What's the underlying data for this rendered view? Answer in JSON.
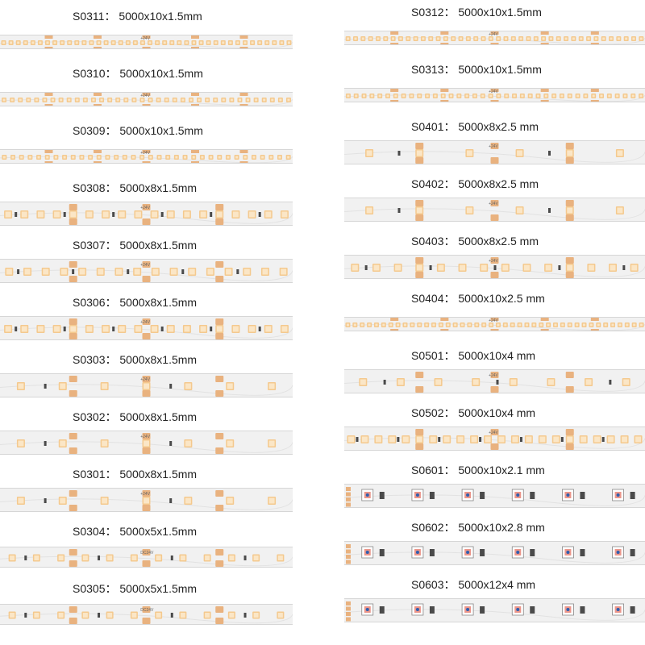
{
  "colors": {
    "pcb": "#f1f1f1",
    "led_warm": "#f4c98e",
    "led_core": "#fbe6c6",
    "pad_copper": "#e9b27f",
    "resistor": "#4a4a4a",
    "rgb_red": "#d8402b",
    "rgb_green": "#3d9b4a",
    "rgb_blue": "#2f5fb0"
  },
  "left_column": [
    {
      "model": "S0311",
      "size": "5000x10x1.5mm",
      "kind": "dense",
      "leds_visible": 40,
      "marks": [
        "+24V",
        "-24V"
      ]
    },
    {
      "model": "S0310",
      "size": "5000x10x1.5mm",
      "kind": "dense",
      "leds_visible": 36,
      "marks": [
        "+24V",
        "-24V"
      ]
    },
    {
      "model": "S0309",
      "size": "5000x10x1.5mm",
      "kind": "dense",
      "leds_visible": 34,
      "marks": [
        "+24V",
        "-24V"
      ]
    },
    {
      "model": "S0308",
      "size": "5000x8x1.5mm",
      "kind": "medium",
      "leds_visible": 18,
      "marks": [
        "+24V",
        "-24V"
      ]
    },
    {
      "model": "S0307",
      "size": "5000x8x1.5mm",
      "kind": "medium",
      "leds_visible": 16,
      "marks": [
        "+24V",
        "-24V"
      ]
    },
    {
      "model": "S0306",
      "size": "5000x8x1.5mm",
      "kind": "medium",
      "leds_visible": 18,
      "marks": [
        "+24V",
        "-24V"
      ]
    },
    {
      "model": "S0303",
      "size": "5000x8x1.5mm",
      "kind": "sparse",
      "leds_visible": 7,
      "marks": [
        "+24V",
        "-24V"
      ]
    },
    {
      "model": "S0302",
      "size": "5000x8x1.5mm",
      "kind": "sparse",
      "leds_visible": 7,
      "marks": [
        "+24V",
        "-24V"
      ]
    },
    {
      "model": "S0301",
      "size": "5000x8x1.5mm",
      "kind": "sparse",
      "leds_visible": 7,
      "marks": [
        "+24V",
        "-24V"
      ]
    },
    {
      "model": "S0304",
      "size": "5000x5x1.5mm",
      "kind": "narrow",
      "leds_visible": 12,
      "marks": [
        "DC24V",
        "+",
        "-"
      ]
    },
    {
      "model": "S0305",
      "size": "5000x5x1.5mm",
      "kind": "narrow",
      "leds_visible": 12,
      "marks": [
        "DC24V",
        "+",
        "-"
      ]
    }
  ],
  "right_column": [
    {
      "model": "S0312",
      "size": "5000x10x1.5mm",
      "kind": "dense",
      "leds_visible": 40,
      "marks": [
        "+24V",
        "-24V"
      ]
    },
    {
      "model": "S0313",
      "size": "5000x10x1.5mm",
      "kind": "dense",
      "leds_visible": 38,
      "marks": [
        "+24V",
        "-24V"
      ]
    },
    {
      "model": "S0401",
      "size": "5000x8x2.5 mm",
      "kind": "sparse",
      "leds_visible": 6,
      "marks": [
        "+24V"
      ]
    },
    {
      "model": "S0402",
      "size": "5000x8x2.5 mm",
      "kind": "sparse",
      "leds_visible": 6,
      "marks": [
        "+24V"
      ]
    },
    {
      "model": "S0403",
      "size": "5000x8x2.5 mm",
      "kind": "medium",
      "leds_visible": 14,
      "marks": [
        "+24V",
        "-24V"
      ]
    },
    {
      "model": "S0404",
      "size": "5000x10x2.5 mm",
      "kind": "dense",
      "leds_visible": 42,
      "marks": [
        "+24V",
        "-24V"
      ]
    },
    {
      "model": "S0501",
      "size": "5000x10x4 mm",
      "kind": "sparse",
      "leds_visible": 8,
      "marks": [
        "+24V"
      ]
    },
    {
      "model": "S0502",
      "size": "5000x10x4 mm",
      "kind": "medium",
      "leds_visible": 22,
      "marks": [
        "+24V"
      ]
    },
    {
      "model": "S0601",
      "size": "5000x10x2.1 mm",
      "kind": "rgb",
      "leds_visible": 6,
      "marks": [
        "B",
        "R",
        "G",
        "24V"
      ]
    },
    {
      "model": "S0602",
      "size": "5000x10x2.8 mm",
      "kind": "rgb",
      "leds_visible": 6,
      "marks": [
        "B",
        "R",
        "G",
        "24V"
      ]
    },
    {
      "model": "S0603",
      "size": "5000x12x4 mm",
      "kind": "rgb",
      "leds_visible": 6,
      "marks": [
        "B",
        "R",
        "G",
        "24V"
      ]
    }
  ]
}
